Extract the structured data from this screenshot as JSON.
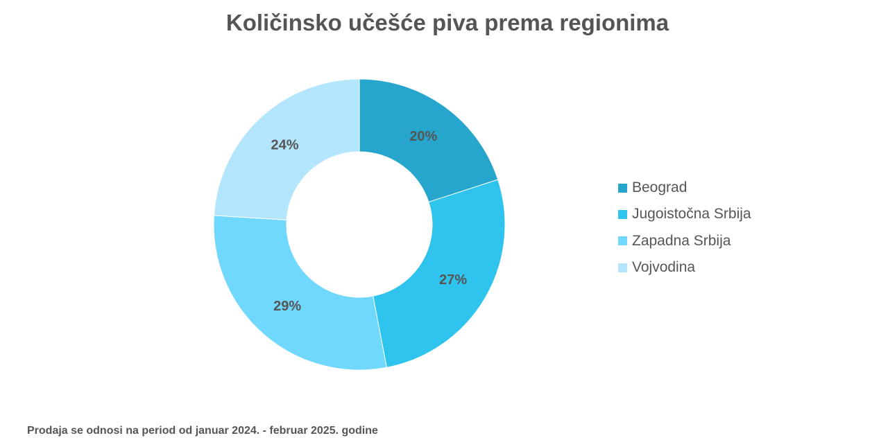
{
  "chart_data": {
    "type": "pie",
    "title": "Količinsko učešće piva prema regionima",
    "categories": [
      "Beograd",
      "Jugoistočna Srbija",
      "Zapadna Srbija",
      "Vojvodina"
    ],
    "values": [
      20,
      27,
      29,
      24
    ],
    "labels": [
      "20%",
      "27%",
      "29%",
      "24%"
    ],
    "colors": [
      "#26a6cd",
      "#2ec4ed",
      "#70d8fd",
      "#b3e6fc"
    ],
    "donut": true,
    "legend_position": "right"
  },
  "footnote": "Prodaja se odnosi na period od januar 2024. - februar 2025. godine"
}
